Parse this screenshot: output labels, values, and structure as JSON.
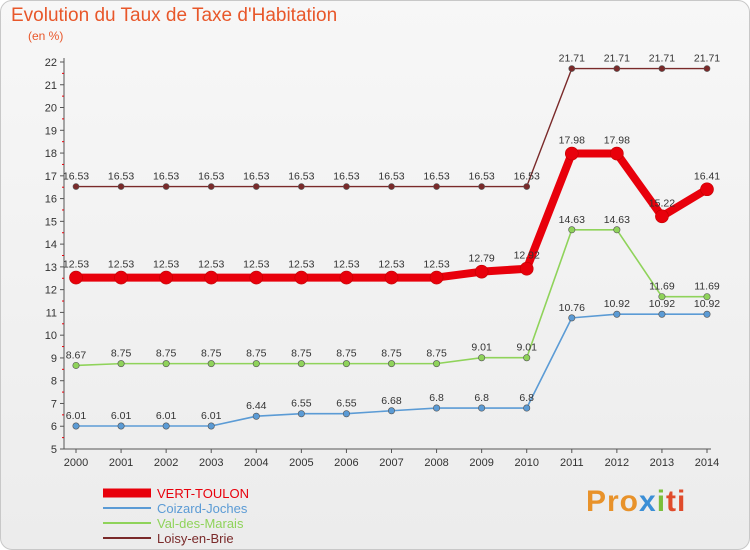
{
  "header": {
    "title": "Evolution du Taux de Taxe d'Habitation",
    "subtitle": "(en %)"
  },
  "brand": {
    "part1": "Pro",
    "part2": "x",
    "part3": "i",
    "part4": "ti"
  },
  "chart_data": {
    "type": "line",
    "title": "Evolution du Taux de Taxe d'Habitation",
    "ylabel": "(en %)",
    "xlabel": "",
    "x": [
      "2000",
      "2001",
      "2002",
      "2003",
      "2004",
      "2005",
      "2006",
      "2007",
      "2008",
      "2009",
      "2010",
      "2011",
      "2012",
      "2013",
      "2014"
    ],
    "ylim": [
      5,
      22
    ],
    "yticks": [
      5,
      6,
      7,
      8,
      9,
      10,
      11,
      12,
      13,
      14,
      15,
      16,
      17,
      18,
      19,
      20,
      21,
      22
    ],
    "grid": false,
    "legend": "bottom-left",
    "series": [
      {
        "name": "VERT-TOULON",
        "color": "#e8000b",
        "values": [
          12.53,
          12.53,
          12.53,
          12.53,
          12.53,
          12.53,
          12.53,
          12.53,
          12.53,
          12.79,
          12.92,
          17.98,
          17.98,
          15.22,
          16.41
        ],
        "labels": [
          "12.53",
          "12.53",
          "12.53",
          "12.53",
          "12.53",
          "12.53",
          "12.53",
          "12.53",
          "12.53",
          "12.79",
          "12.92",
          "17.98",
          "17.98",
          "15.22",
          "16.41"
        ]
      },
      {
        "name": "Coizard-Joches",
        "color": "#5b9bd5",
        "values": [
          6.01,
          6.01,
          6.01,
          6.01,
          6.44,
          6.55,
          6.55,
          6.68,
          6.8,
          6.8,
          6.8,
          10.76,
          10.92,
          10.92,
          10.92
        ],
        "labels": [
          "6.01",
          "6.01",
          "6.01",
          "6.01",
          "6.44",
          "6.55",
          "6.55",
          "6.68",
          "6.8",
          "6.8",
          "6.8",
          "10.76",
          "10.92",
          "10.92",
          "10.92"
        ]
      },
      {
        "name": "Val-des-Marais",
        "color": "#8fd35a",
        "values": [
          8.67,
          8.75,
          8.75,
          8.75,
          8.75,
          8.75,
          8.75,
          8.75,
          8.75,
          9.01,
          9.01,
          14.63,
          14.63,
          11.69,
          11.69
        ],
        "labels": [
          "8.67",
          "8.75",
          "8.75",
          "8.75",
          "8.75",
          "8.75",
          "8.75",
          "8.75",
          "8.75",
          "9.01",
          "9.01",
          "14.63",
          "14.63",
          "11.69",
          "11.69"
        ]
      },
      {
        "name": "Loisy-en-Brie",
        "color": "#7a2a2a",
        "values": [
          16.53,
          16.53,
          16.53,
          16.53,
          16.53,
          16.53,
          16.53,
          16.53,
          16.53,
          16.53,
          16.53,
          21.71,
          21.71,
          21.71,
          21.71
        ],
        "labels": [
          "16.53",
          "16.53",
          "16.53",
          "16.53",
          "16.53",
          "16.53",
          "16.53",
          "16.53",
          "16.53",
          "16.53",
          "16.53",
          "21.71",
          "21.71",
          "21.71",
          "21.71"
        ]
      }
    ]
  }
}
